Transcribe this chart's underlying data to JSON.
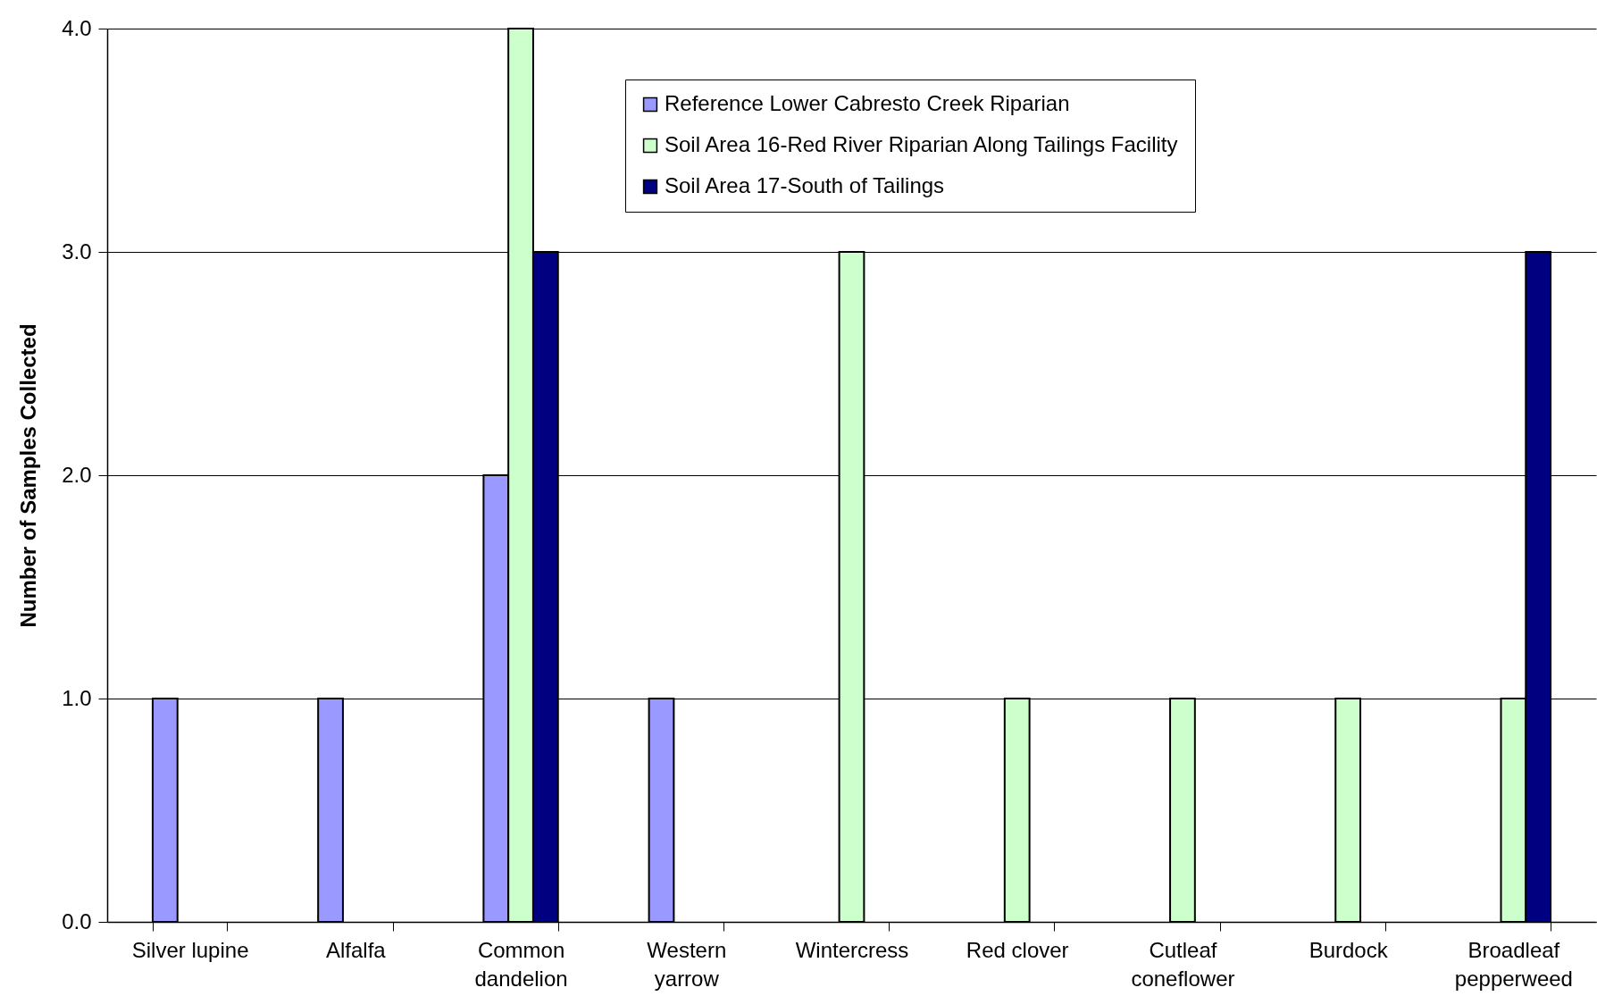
{
  "chart_data": {
    "type": "bar",
    "ylabel": "Number of Samples Collected",
    "categories": [
      "Silver lupine",
      "Alfalfa",
      "Common dandelion",
      "Western yarrow",
      "Wintercress",
      "Red clover",
      "Cutleaf coneflower",
      "Burdock",
      "Broadleaf pepperweed"
    ],
    "series": [
      {
        "name": "Reference Lower Cabresto Creek Riparian",
        "color": "#9999ff",
        "values": [
          1,
          1,
          2,
          1,
          null,
          null,
          null,
          null,
          null
        ]
      },
      {
        "name": "Soil Area 16-Red River Riparian Along Tailings Facility",
        "color": "#ccffcc",
        "values": [
          null,
          null,
          4,
          null,
          3,
          1,
          1,
          1,
          1
        ]
      },
      {
        "name": "Soil Area 17-South of Tailings",
        "color": "#000080",
        "values": [
          null,
          null,
          3,
          null,
          null,
          null,
          null,
          null,
          3
        ]
      }
    ],
    "ylim": [
      0,
      4
    ],
    "yticks": [
      {
        "value": 0,
        "label": "0.0"
      },
      {
        "value": 1,
        "label": "1.0"
      },
      {
        "value": 2,
        "label": "2.0"
      },
      {
        "value": 3,
        "label": "3.0"
      },
      {
        "value": 4,
        "label": "4.0"
      }
    ],
    "grid": "y",
    "legend": "top"
  }
}
